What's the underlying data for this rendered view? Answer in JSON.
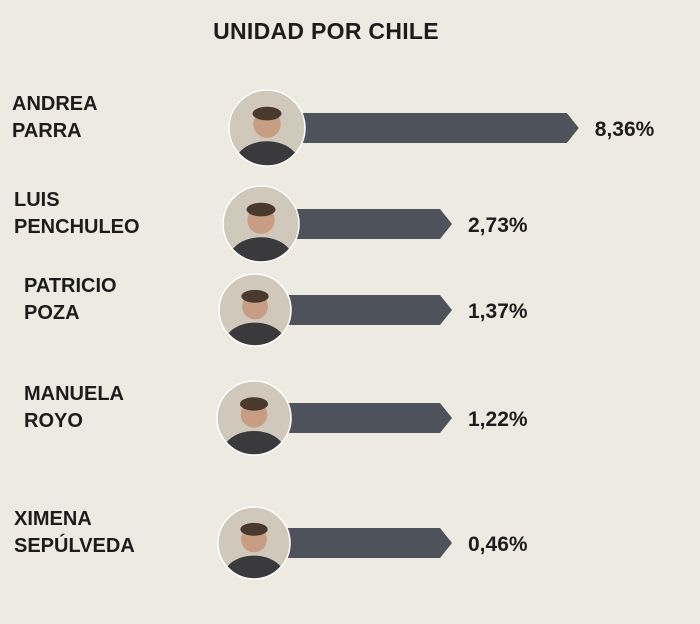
{
  "chart_data": {
    "type": "bar",
    "orientation": "horizontal",
    "title": "UNIDAD POR CHILE",
    "categories": [
      [
        "ANDREA",
        "PARRA"
      ],
      [
        "LUIS",
        "PENCHULEO"
      ],
      [
        "PATRICIO",
        "POZA"
      ],
      [
        "MANUELA",
        "ROYO"
      ],
      [
        "XIMENA",
        "SEPÚLVEDA"
      ]
    ],
    "values": [
      8.36,
      2.73,
      1.37,
      1.22,
      0.46
    ],
    "value_labels": [
      "8,36%",
      "2,73%",
      "1,37%",
      "1,22%",
      "0,46%"
    ],
    "unit": "%",
    "bar_color": "#4e535b",
    "background_color": "#eceae1",
    "grid": false,
    "legend": "none",
    "photos": [
      "candidate-photo",
      "candidate-photo",
      "candidate-photo",
      "candidate-photo",
      "candidate-photo"
    ]
  }
}
